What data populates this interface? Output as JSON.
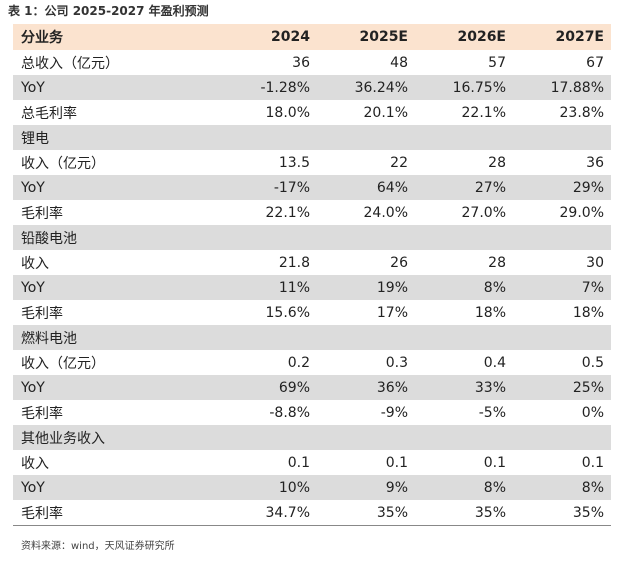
{
  "caption": "表 1：公司 2025-2027 年盈利预测",
  "header": [
    "分业务",
    "2024",
    "2025E",
    "2026E",
    "2027E"
  ],
  "rows": [
    {
      "label": "总收入（亿元）",
      "values": [
        "36",
        "48",
        "57",
        "67"
      ],
      "shade": false
    },
    {
      "label": "YoY",
      "values": [
        "-1.28%",
        "36.24%",
        "16.75%",
        "17.88%"
      ],
      "shade": true
    },
    {
      "label": "总毛利率",
      "values": [
        "18.0%",
        "20.1%",
        "22.1%",
        "23.8%"
      ],
      "shade": false
    },
    {
      "label": "锂电",
      "values": [
        "",
        "",
        "",
        ""
      ],
      "shade": true
    },
    {
      "label": "收入（亿元）",
      "values": [
        "13.5",
        "22",
        "28",
        "36"
      ],
      "shade": false
    },
    {
      "label": "YoY",
      "values": [
        "-17%",
        "64%",
        "27%",
        "29%"
      ],
      "shade": true
    },
    {
      "label": "毛利率",
      "values": [
        "22.1%",
        "24.0%",
        "27.0%",
        "29.0%"
      ],
      "shade": false
    },
    {
      "label": "铅酸电池",
      "values": [
        "",
        "",
        "",
        ""
      ],
      "shade": true
    },
    {
      "label": "收入",
      "values": [
        "21.8",
        "26",
        "28",
        "30"
      ],
      "shade": false
    },
    {
      "label": "YoY",
      "values": [
        "11%",
        "19%",
        "8%",
        "7%"
      ],
      "shade": true
    },
    {
      "label": "毛利率",
      "values": [
        "15.6%",
        "17%",
        "18%",
        "18%"
      ],
      "shade": false
    },
    {
      "label": "燃料电池",
      "values": [
        "",
        "",
        "",
        ""
      ],
      "shade": true
    },
    {
      "label": "收入（亿元）",
      "values": [
        "0.2",
        "0.3",
        "0.4",
        "0.5"
      ],
      "shade": false
    },
    {
      "label": "YoY",
      "values": [
        "69%",
        "36%",
        "33%",
        "25%"
      ],
      "shade": true
    },
    {
      "label": "毛利率",
      "values": [
        "-8.8%",
        "-9%",
        "-5%",
        "0%"
      ],
      "shade": false
    },
    {
      "label": "其他业务收入",
      "values": [
        "",
        "",
        "",
        ""
      ],
      "shade": true
    },
    {
      "label": "收入",
      "values": [
        "0.1",
        "0.1",
        "0.1",
        "0.1"
      ],
      "shade": false
    },
    {
      "label": "YoY",
      "values": [
        "10%",
        "9%",
        "8%",
        "8%"
      ],
      "shade": true
    },
    {
      "label": "毛利率",
      "values": [
        "34.7%",
        "35%",
        "35%",
        "35%"
      ],
      "shade": false
    }
  ],
  "source": "资料来源：wind，天风证券研究所",
  "colors": {
    "header_bg": "#fbe3cf",
    "shade_bg": "#dcdcdc"
  }
}
